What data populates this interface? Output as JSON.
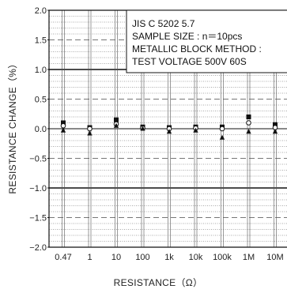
{
  "chart_data": {
    "type": "scatter",
    "xlabel": "RESISTANCE（Ω）",
    "ylabel": "RESISTANCE CHANGE（%）",
    "categories": [
      "0.47",
      "1",
      "10",
      "100",
      "1k",
      "10k",
      "100k",
      "1M",
      "10M"
    ],
    "y_ticks": [
      "2.0",
      "1.5",
      "1.0",
      "0.5",
      "0.0",
      "−0.5",
      "−1.0",
      "−1.5",
      "−2.0"
    ],
    "ylim": [
      -2.0,
      2.0
    ],
    "grid": true,
    "legend": "none",
    "annotation_lines": [
      "JIS C 5202 5.7",
      "SAMPLE SIZE : n＝10pcs",
      "METALLIC BLOCK METHOD :",
      "TEST VOLTAGE 500V 60S"
    ],
    "series": [
      {
        "marker": "square-filled",
        "values": [
          0.1,
          0.02,
          0.15,
          0.03,
          0.02,
          0.03,
          0.03,
          0.2,
          0.07
        ]
      },
      {
        "marker": "circle-open",
        "values": [
          0.05,
          0.0,
          0.08,
          0.01,
          0.0,
          0.01,
          0.0,
          0.1,
          0.02
        ]
      },
      {
        "marker": "triangle-filled",
        "values": [
          -0.03,
          -0.08,
          0.05,
          0.0,
          -0.05,
          -0.03,
          -0.15,
          -0.05,
          -0.05
        ]
      }
    ],
    "colors": {
      "line": "#111111",
      "grid": "#555555",
      "dashed": "#777777"
    }
  }
}
